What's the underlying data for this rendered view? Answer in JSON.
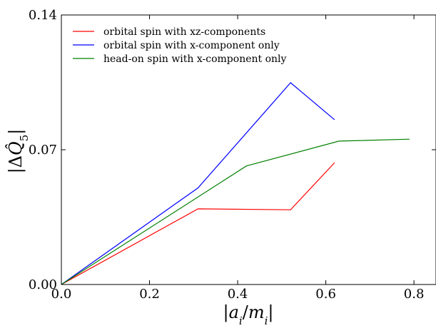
{
  "chart_data": {
    "type": "line",
    "title": "",
    "xlabel": "|a_i / m_i|",
    "ylabel": "|ΔQ̂_5|",
    "xlim": [
      0.0,
      0.85
    ],
    "ylim": [
      0.0,
      0.14
    ],
    "x_ticks": [
      0.0,
      0.2,
      0.4,
      0.6,
      0.8
    ],
    "x_tick_labels": [
      "0.0",
      "0.2",
      "0.4",
      "0.6",
      "0.8"
    ],
    "y_ticks": [
      0.0,
      0.07,
      0.14
    ],
    "y_tick_labels": [
      "0.00",
      "0.07",
      "0.14"
    ],
    "grid": false,
    "legend_position": "top-left",
    "series": [
      {
        "name": "orbital spin with xz-components",
        "color": "#ff0000",
        "x": [
          0.0,
          0.31,
          0.52,
          0.62
        ],
        "y": [
          0.0,
          0.0393,
          0.0388,
          0.0633
        ]
      },
      {
        "name": "orbital spin with x-component only",
        "color": "#0000ff",
        "x": [
          0.0,
          0.31,
          0.52,
          0.62
        ],
        "y": [
          0.0,
          0.0502,
          0.1048,
          0.0856
        ]
      },
      {
        "name": "head-on spin with x-component only",
        "color": "#008000",
        "x": [
          0.0,
          0.42,
          0.63,
          0.79
        ],
        "y": [
          0.0,
          0.0616,
          0.0745,
          0.0755
        ]
      }
    ]
  }
}
